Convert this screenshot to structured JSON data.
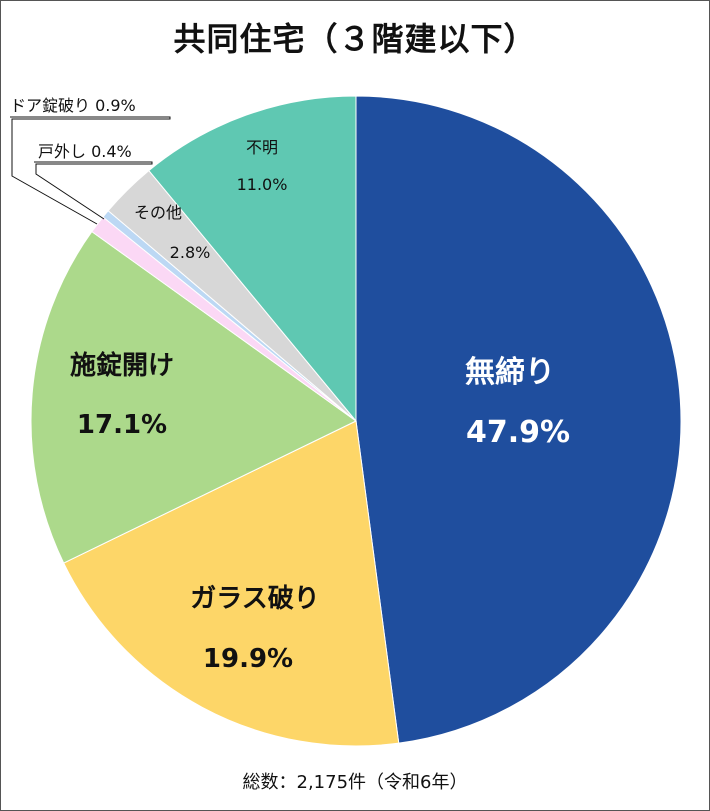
{
  "chart_data": {
    "type": "pie",
    "title": "共同住宅（３階建以下）",
    "footer": "総数：2,175件（令和6年）",
    "slices": [
      {
        "label": "無締り",
        "value": 47.9,
        "value_label": "47.9%",
        "color": "#1f4e9e",
        "text_color": "#ffffff"
      },
      {
        "label": "ガラス破り",
        "value": 19.9,
        "value_label": "19.9%",
        "color": "#fdd668",
        "text_color": "#111111"
      },
      {
        "label": "施錠開け",
        "value": 17.1,
        "value_label": "17.1%",
        "color": "#acd98b",
        "text_color": "#111111"
      },
      {
        "label": "ドア錠破り",
        "value": 0.9,
        "value_label": "0.9%",
        "color": "#fbd8f5",
        "text_color": "#111111"
      },
      {
        "label": "戸外し",
        "value": 0.4,
        "value_label": "0.4%",
        "color": "#bcd8f4",
        "text_color": "#111111"
      },
      {
        "label": "その他",
        "value": 2.8,
        "value_label": "2.8%",
        "color": "#d7d7d7",
        "text_color": "#111111"
      },
      {
        "label": "不明",
        "value": 11.0,
        "value_label": "11.0%",
        "color": "#5fc8b2",
        "text_color": "#111111"
      }
    ]
  }
}
